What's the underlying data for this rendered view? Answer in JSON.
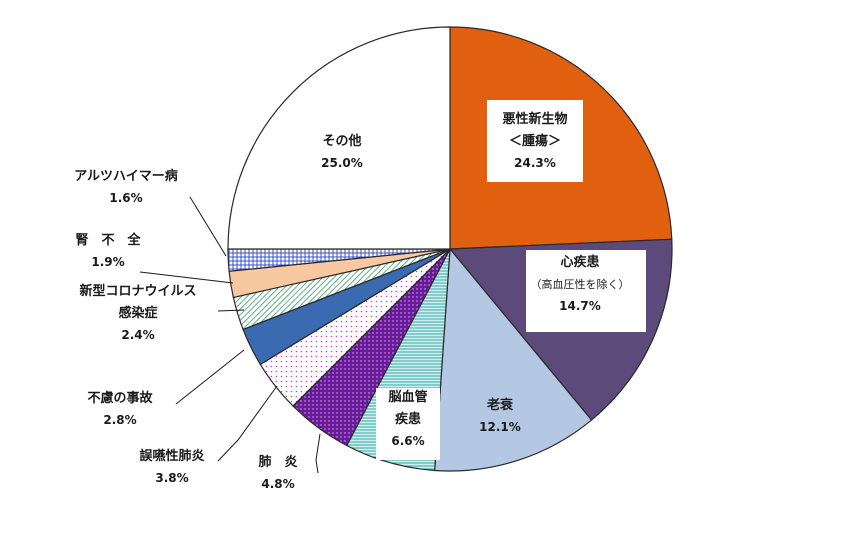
{
  "chart_data": {
    "type": "pie",
    "title": "",
    "start": "12 o'clock",
    "direction": "clockwise",
    "slices": [
      {
        "key": "cancer",
        "label_lines": [
          "悪性新生物",
          "＜腫瘍＞"
        ],
        "value": 24.3,
        "value_label": "24.3%",
        "color": "#e06010",
        "pattern": "solid",
        "label_box": true
      },
      {
        "key": "heart",
        "label_lines": [
          "心疾患",
          "（高血圧性を除く）"
        ],
        "value": 14.7,
        "value_label": "14.7%",
        "color": "#5b4a7a",
        "pattern": "solid",
        "label_box": true
      },
      {
        "key": "senility",
        "label_lines": [
          "老衰"
        ],
        "value": 12.1,
        "value_label": "12.1%",
        "color": "#b4c8e4",
        "pattern": "solid",
        "label_box": false
      },
      {
        "key": "cerebro",
        "label_lines": [
          "脳血管",
          "疾患"
        ],
        "value": 6.6,
        "value_label": "6.6%",
        "color": "#cfeeee",
        "pattern": "hlines",
        "label_box": true
      },
      {
        "key": "pneumonia",
        "label_lines": [
          "肺　炎"
        ],
        "value": 4.8,
        "value_label": "4.8%",
        "color": "#6a1a9a",
        "pattern": "dots",
        "label_box": false
      },
      {
        "key": "aspiration",
        "label_lines": [
          "誤嚥性肺炎"
        ],
        "value": 3.8,
        "value_label": "3.8%",
        "color": "#ffffff",
        "pattern": "pinkdots",
        "label_box": false
      },
      {
        "key": "accident",
        "label_lines": [
          "不慮の事故"
        ],
        "value": 2.8,
        "value_label": "2.8%",
        "color": "#3a6ab0",
        "pattern": "solid",
        "label_box": false
      },
      {
        "key": "covid",
        "label_lines": [
          "新型コロナウイルス",
          "感染症"
        ],
        "value": 2.4,
        "value_label": "2.4%",
        "color": "#ffffff",
        "pattern": "greenhatch",
        "label_box": false
      },
      {
        "key": "renal",
        "label_lines": [
          "腎　不　全"
        ],
        "value": 1.9,
        "value_label": "1.9%",
        "color": "#f8c8a0",
        "pattern": "solid",
        "label_box": false
      },
      {
        "key": "alzheimer",
        "label_lines": [
          "アルツハイマー病"
        ],
        "value": 1.6,
        "value_label": "1.6%",
        "color": "#ffffff",
        "pattern": "bluecheck",
        "label_box": false
      },
      {
        "key": "other",
        "label_lines": [
          "その他"
        ],
        "value": 25.0,
        "value_label": "25.0%",
        "color": "#ffffff",
        "pattern": "solid",
        "label_box": false
      }
    ]
  }
}
